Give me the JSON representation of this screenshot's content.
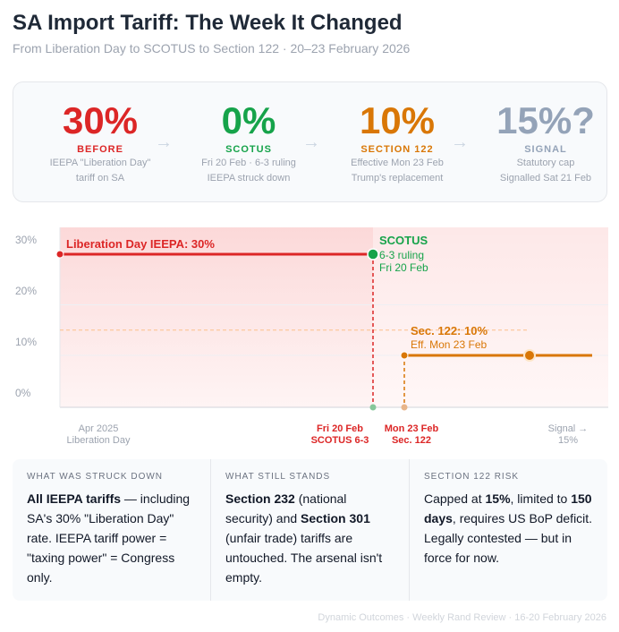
{
  "title": "SA Import Tariff: The Week It Changed",
  "subtitle": "From Liberation Day to SCOTUS to Section 122 · 20–23 February 2026",
  "stats": [
    {
      "value": "30%",
      "label": "BEFORE",
      "desc1": "IEEPA \"Liberation Day\"",
      "desc2": "tariff on SA",
      "color": "#dc2626"
    },
    {
      "value": "0%",
      "label": "SCOTUS",
      "desc1": "Fri 20 Feb · 6-3 ruling",
      "desc2": "IEEPA struck down",
      "color": "#16a34a"
    },
    {
      "value": "10%",
      "label": "SECTION 122",
      "desc1": "Effective Mon 23 Feb",
      "desc2": "Trump's replacement",
      "color": "#d97706"
    },
    {
      "value": "15%?",
      "label": "SIGNAL",
      "desc1": "Statutory cap",
      "desc2": "Signalled Sat 21 Feb",
      "color": "#94a3b8"
    }
  ],
  "arrow": "→",
  "chart_data": {
    "type": "line",
    "yticks": [
      "0%",
      "10%",
      "20%",
      "30%"
    ],
    "ylim": [
      0,
      30
    ],
    "grid": true,
    "x_labels": [
      {
        "l1": "Apr 2025",
        "l2": "Liberation Day",
        "color": "#9ca3af"
      },
      {
        "l1": "Fri 20 Feb",
        "l2": "SCOTUS 6-3",
        "color": "#dc2626"
      },
      {
        "l1": "Mon 23 Feb",
        "l2": "Sec. 122",
        "color": "#dc2626"
      },
      {
        "l1": "Signal →",
        "l2": "15%",
        "color": "#9ca3af"
      }
    ],
    "series": [
      {
        "name": "Liberation Day IEEPA: 30%",
        "color": "#dc2626",
        "points": [
          [
            "Apr 2025",
            30
          ],
          [
            "Fri 20 Feb",
            30
          ]
        ]
      },
      {
        "name": "Sec. 122: 10%",
        "color": "#d97706",
        "points": [
          [
            "Mon 23 Feb",
            10
          ],
          [
            "Signal",
            10
          ]
        ]
      }
    ],
    "signal_level": 15,
    "annotations": {
      "scotus": {
        "title": "SCOTUS",
        "l1": "6-3 ruling",
        "l2": "Fri 20 Feb",
        "color": "#16a34a"
      },
      "sec122": {
        "title": "Sec. 122: 10%",
        "l1": "Eff. Mon 23 Feb",
        "color": "#d97706"
      }
    }
  },
  "cards": [
    {
      "heading": "WHAT WAS STRUCK DOWN",
      "parts": [
        [
          "All IEEPA tariffs",
          true
        ],
        [
          " — including SA's 30% \"Liberation Day\" rate. IEEPA tariff power = \"taxing power\" = Congress only.",
          false
        ]
      ]
    },
    {
      "heading": "WHAT STILL STANDS",
      "parts": [
        [
          "Section 232",
          true
        ],
        [
          " (national security) and ",
          false
        ],
        [
          "Section 301",
          true
        ],
        [
          " (unfair trade) tariffs are untouched. The arsenal isn't empty.",
          false
        ]
      ]
    },
    {
      "heading": "SECTION 122 RISK",
      "parts": [
        [
          "Capped at ",
          false
        ],
        [
          "15%",
          true
        ],
        [
          ", limited to ",
          false
        ],
        [
          "150 days",
          true
        ],
        [
          ", requires US BoP deficit. Legally contested — but in force for now.",
          false
        ]
      ]
    }
  ],
  "footer": "Dynamic Outcomes · Weekly Rand Review · 16-20 February 2026"
}
